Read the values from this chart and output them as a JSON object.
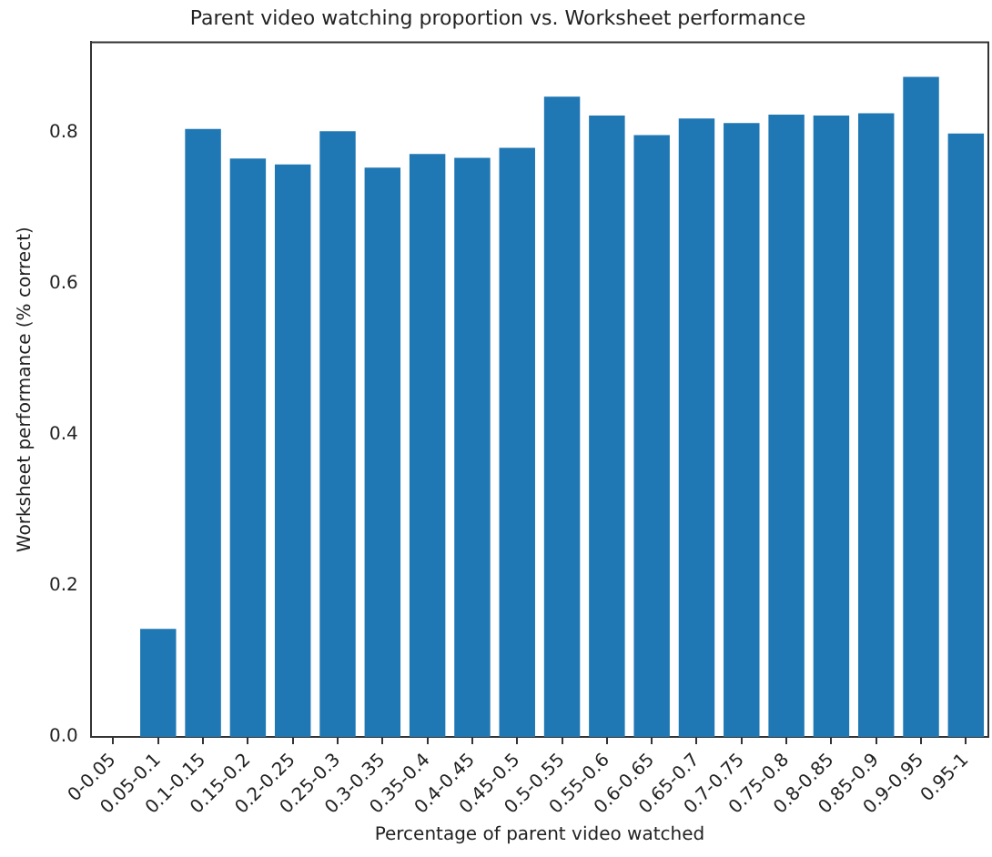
{
  "chart_data": {
    "type": "bar",
    "title": "Parent video watching proportion vs. Worksheet performance",
    "xlabel": "Percentage of parent video watched",
    "ylabel": "Worksheet performance (% correct)",
    "categories": [
      "0-0.05",
      "0.05-0.1",
      "0.1-0.15",
      "0.15-0.2",
      "0.2-0.25",
      "0.25-0.3",
      "0.3-0.35",
      "0.35-0.4",
      "0.4-0.45",
      "0.45-0.5",
      "0.5-0.55",
      "0.55-0.6",
      "0.6-0.65",
      "0.65-0.7",
      "0.7-0.75",
      "0.75-0.8",
      "0.8-0.85",
      "0.85-0.9",
      "0.9-0.95",
      "0.95-1"
    ],
    "values": [
      null,
      0.143,
      0.805,
      0.766,
      0.758,
      0.802,
      0.754,
      0.772,
      0.767,
      0.78,
      0.848,
      0.823,
      0.797,
      0.819,
      0.813,
      0.824,
      0.823,
      0.826,
      0.874,
      0.799
    ],
    "color": "#1f77b4",
    "ylim": [
      0,
      0.92
    ],
    "yticks": [
      {
        "value": 0,
        "label": "0.0"
      },
      {
        "value": 0.2,
        "label": "0.2"
      },
      {
        "value": 0.4,
        "label": "0.4"
      },
      {
        "value": 0.6,
        "label": "0.6"
      },
      {
        "value": 0.8,
        "label": "0.8"
      }
    ],
    "grid": false,
    "legend": false
  }
}
